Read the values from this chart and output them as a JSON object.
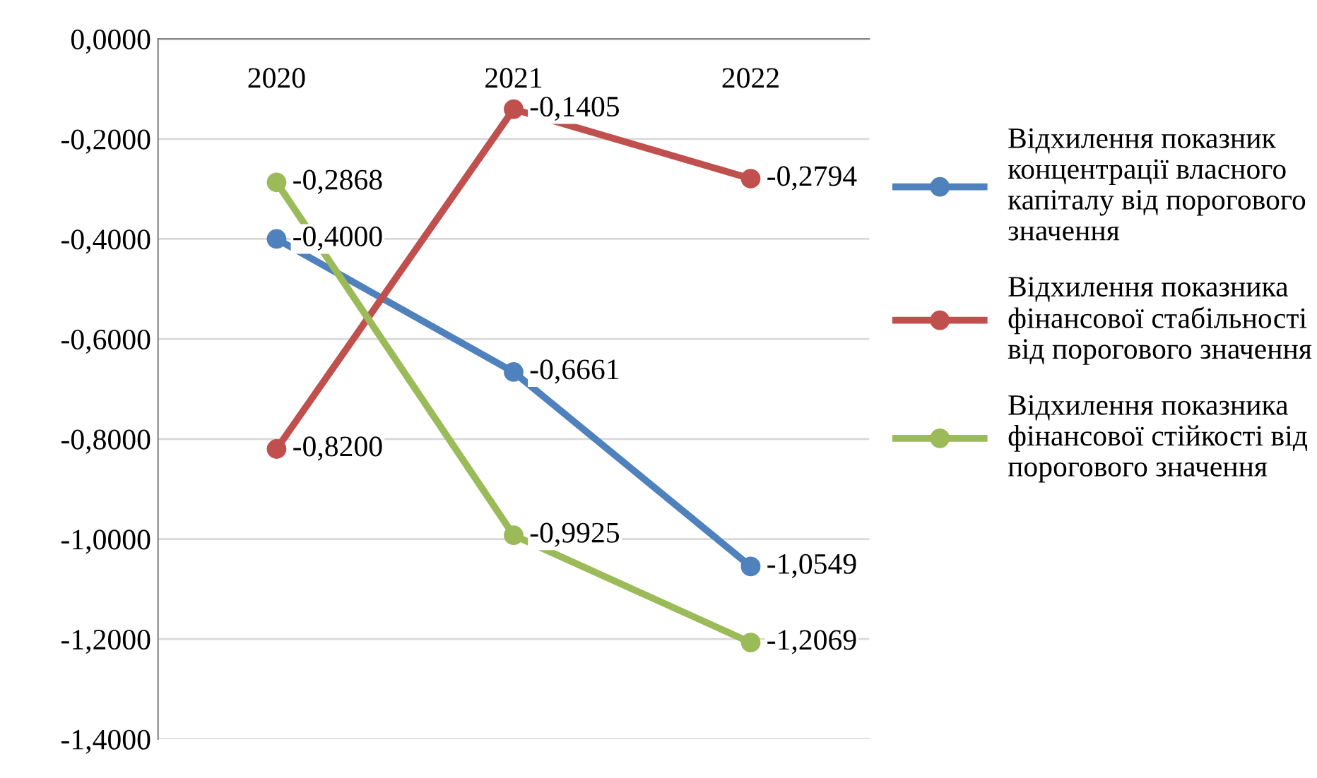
{
  "chart_data": {
    "type": "line",
    "categories": [
      "2020",
      "2021",
      "2022"
    ],
    "series": [
      {
        "name": "Відхилення показник\nконцентрації власного\nкапіталу від порогового\nзначення",
        "color": "#4f81bd",
        "values": [
          -0.4,
          -0.6661,
          -1.0549
        ],
        "value_labels": [
          "-0,4000",
          "-0,6661",
          "-1,0549"
        ]
      },
      {
        "name": "Відхилення показника\nфінансової стабільності\nвід порогового значення",
        "color": "#c0504d",
        "values": [
          -0.82,
          -0.1405,
          -0.2794
        ],
        "value_labels": [
          "-0,8200",
          "-0,1405",
          "-0,2794"
        ]
      },
      {
        "name": "Відхилення показника\nфінансової стійкості від\nпорогового значення",
        "color": "#9bbb59",
        "values": [
          -0.2868,
          -0.9925,
          -1.2069
        ],
        "value_labels": [
          "-0,2868",
          "-0,9925",
          "-1,2069"
        ]
      }
    ],
    "ylim": [
      -1.4,
      0
    ],
    "yticks": [
      {
        "value": 0,
        "label": "0,0000"
      },
      {
        "value": -0.2,
        "label": "-0,2000"
      },
      {
        "value": -0.4,
        "label": "-0,4000"
      },
      {
        "value": -0.6,
        "label": "-0,6000"
      },
      {
        "value": -0.8,
        "label": "-0,8000"
      },
      {
        "value": -1.0,
        "label": "-1,0000"
      },
      {
        "value": -1.2,
        "label": "-1,2000"
      },
      {
        "value": -1.4,
        "label": "-1,4000"
      }
    ],
    "grid": "y",
    "legend": "right",
    "marker": "circle",
    "line_style": "solid"
  }
}
